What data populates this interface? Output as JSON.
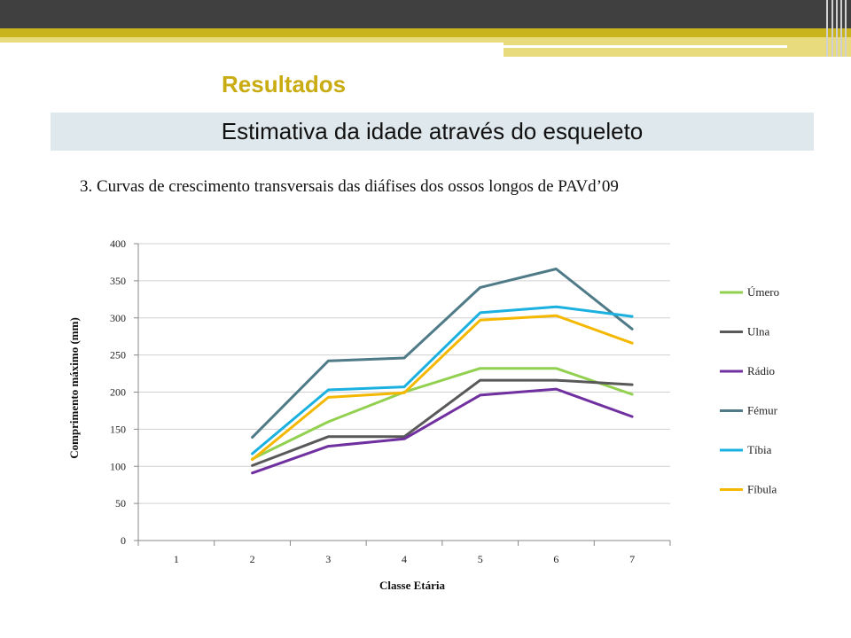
{
  "slide": {
    "section_title": "Resultados",
    "banner_title": "Estimativa da idade através do esqueleto",
    "subtitle": "3. Curvas de crescimento transversais das diáfises dos ossos longos de PAVd’09"
  },
  "chart_data": {
    "type": "line",
    "title": "",
    "xlabel": "Classe Etária",
    "ylabel": "Comprimento máximo (mm)",
    "categories": [
      "1",
      "2",
      "3",
      "4",
      "5",
      "6",
      "7"
    ],
    "ylim": [
      0,
      400
    ],
    "yticks": [
      0,
      50,
      100,
      150,
      200,
      250,
      300,
      350,
      400
    ],
    "grid": true,
    "legend_position": "right",
    "series": [
      {
        "name": "Úmero",
        "color": "#92d050",
        "values": [
          null,
          110,
          160,
          200,
          232,
          232,
          197
        ]
      },
      {
        "name": "Ulna",
        "color": "#595959",
        "values": [
          null,
          101,
          140,
          140,
          216,
          216,
          210
        ]
      },
      {
        "name": "Rádio",
        "color": "#7030a0",
        "values": [
          null,
          91,
          127,
          137,
          196,
          204,
          167
        ]
      },
      {
        "name": "Fémur",
        "color": "#4f7a87",
        "values": [
          null,
          139,
          242,
          246,
          341,
          366,
          285
        ]
      },
      {
        "name": "Tíbia",
        "color": "#1ab0e0",
        "values": [
          null,
          117,
          203,
          207,
          307,
          315,
          302
        ]
      },
      {
        "name": "Fíbula",
        "color": "#f5b800",
        "values": [
          null,
          109,
          193,
          199,
          297,
          303,
          266
        ]
      }
    ]
  }
}
